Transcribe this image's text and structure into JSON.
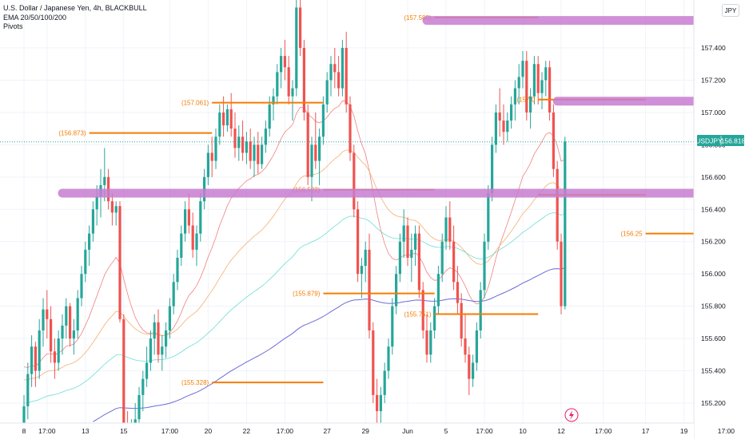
{
  "legend": {
    "symbol_line": "U.S. Dollar / Japanese Yen, 4h, BLACKBULL",
    "indicator_ema": "EMA 20/50/100/200",
    "indicator_pivots": "Pivots"
  },
  "currency_button": "JPY",
  "price_badge": {
    "symbol": "USDJPY",
    "price": "156.818"
  },
  "colors": {
    "bull": "#26a69a",
    "bear": "#ef5350",
    "pivot": "#f57c00",
    "zone": "#c77dd1",
    "ema20": "#ef7373",
    "ema50": "#f5a55f",
    "ema100": "#5ed9d1",
    "ema200": "#5b5bd6"
  },
  "chart_data": {
    "type": "candlestick",
    "symbol": "USDJPY",
    "timeframe": "4h",
    "y_axis": {
      "ticks": [
        155.2,
        155.4,
        155.6,
        155.8,
        156.0,
        156.2,
        156.4,
        156.6,
        156.8,
        157.0,
        157.2,
        157.4
      ],
      "tick_labels": [
        "155.200",
        "155.400",
        "155.600",
        "155.800",
        "156.000",
        "156.200",
        "156.400",
        "156.600",
        "156.800",
        "157.000",
        "157.200",
        "157.400"
      ],
      "range": [
        155.1,
        157.75
      ]
    },
    "x_axis": {
      "tick_labels": [
        "8",
        "17:00",
        "13",
        "15",
        "17:00",
        "20",
        "22",
        "17:00",
        "27",
        "29",
        "Jun",
        "5",
        "17:00",
        "10",
        "12",
        "17:00",
        "17",
        "19",
        "17:00"
      ],
      "tick_bar_index": [
        0,
        6,
        16,
        26,
        38,
        48,
        58,
        68,
        79,
        89,
        100,
        110,
        120,
        130,
        140,
        151,
        162,
        172,
        183
      ]
    },
    "current_price": 156.818,
    "candles": [
      [
        155.0,
        155.25,
        154.85,
        155.18
      ],
      [
        155.18,
        155.45,
        155.1,
        155.38
      ],
      [
        155.38,
        155.62,
        155.3,
        155.55
      ],
      [
        155.55,
        155.58,
        155.3,
        155.4
      ],
      [
        155.4,
        155.72,
        155.35,
        155.65
      ],
      [
        155.65,
        155.85,
        155.55,
        155.78
      ],
      [
        155.78,
        155.9,
        155.6,
        155.72
      ],
      [
        155.72,
        155.8,
        155.45,
        155.52
      ],
      [
        155.52,
        155.6,
        155.35,
        155.45
      ],
      [
        155.45,
        155.65,
        155.4,
        155.6
      ],
      [
        155.6,
        155.75,
        155.5,
        155.68
      ],
      [
        155.68,
        155.85,
        155.6,
        155.8
      ],
      [
        155.8,
        155.82,
        155.55,
        155.6
      ],
      [
        155.6,
        155.72,
        155.5,
        155.65
      ],
      [
        155.65,
        155.9,
        155.6,
        155.85
      ],
      [
        155.85,
        156.05,
        155.8,
        156.0
      ],
      [
        156.0,
        156.2,
        155.95,
        156.15
      ],
      [
        156.15,
        156.3,
        156.05,
        156.25
      ],
      [
        156.25,
        156.45,
        156.2,
        156.4
      ],
      [
        156.4,
        156.55,
        156.3,
        156.48
      ],
      [
        156.48,
        156.65,
        156.35,
        156.55
      ],
      [
        156.55,
        156.78,
        156.45,
        156.6
      ],
      [
        156.6,
        156.65,
        156.4,
        156.45
      ],
      [
        156.45,
        156.5,
        156.3,
        156.38
      ],
      [
        156.38,
        156.45,
        156.3,
        156.42
      ],
      [
        156.42,
        156.45,
        155.7,
        155.72
      ],
      [
        155.72,
        155.75,
        155.0,
        155.05
      ],
      [
        155.05,
        155.15,
        154.9,
        155.0
      ],
      [
        155.0,
        155.1,
        154.85,
        155.05
      ],
      [
        155.05,
        155.2,
        154.95,
        155.1
      ],
      [
        155.1,
        155.3,
        155.05,
        155.25
      ],
      [
        155.25,
        155.4,
        155.15,
        155.35
      ],
      [
        155.35,
        155.55,
        155.3,
        155.45
      ],
      [
        155.45,
        155.65,
        155.4,
        155.6
      ],
      [
        155.6,
        155.75,
        155.5,
        155.7
      ],
      [
        155.7,
        155.78,
        155.45,
        155.5
      ],
      [
        155.5,
        155.62,
        155.4,
        155.55
      ],
      [
        155.55,
        155.7,
        155.48,
        155.65
      ],
      [
        155.65,
        155.85,
        155.6,
        155.8
      ],
      [
        155.8,
        156.0,
        155.75,
        155.95
      ],
      [
        155.95,
        156.15,
        155.9,
        156.1
      ],
      [
        156.1,
        156.3,
        156.05,
        156.25
      ],
      [
        156.25,
        156.45,
        156.2,
        156.4
      ],
      [
        156.4,
        156.5,
        156.25,
        156.3
      ],
      [
        156.3,
        156.38,
        156.1,
        156.15
      ],
      [
        156.15,
        156.3,
        156.05,
        156.25
      ],
      [
        156.25,
        156.5,
        156.2,
        156.45
      ],
      [
        156.45,
        156.65,
        156.4,
        156.6
      ],
      [
        156.6,
        156.8,
        156.55,
        156.75
      ],
      [
        156.75,
        156.85,
        156.6,
        156.7
      ],
      [
        156.7,
        156.9,
        156.65,
        156.85
      ],
      [
        156.85,
        157.05,
        156.8,
        157.0
      ],
      [
        157.0,
        157.1,
        156.85,
        156.92
      ],
      [
        156.92,
        157.05,
        156.88,
        157.02
      ],
      [
        157.02,
        157.12,
        156.85,
        156.9
      ],
      [
        156.9,
        157.0,
        156.72,
        156.78
      ],
      [
        156.78,
        156.92,
        156.7,
        156.85
      ],
      [
        156.85,
        156.95,
        156.7,
        156.75
      ],
      [
        156.75,
        156.88,
        156.68,
        156.82
      ],
      [
        156.82,
        156.9,
        156.65,
        156.7
      ],
      [
        156.7,
        156.85,
        156.6,
        156.8
      ],
      [
        156.8,
        156.88,
        156.62,
        156.68
      ],
      [
        156.68,
        156.85,
        156.65,
        156.8
      ],
      [
        156.8,
        156.95,
        156.75,
        156.9
      ],
      [
        156.9,
        157.1,
        156.85,
        157.05
      ],
      [
        157.05,
        157.15,
        156.95,
        157.1
      ],
      [
        157.1,
        157.3,
        157.05,
        157.25
      ],
      [
        157.25,
        157.4,
        157.15,
        157.35
      ],
      [
        157.35,
        157.45,
        157.2,
        157.28
      ],
      [
        157.28,
        157.35,
        157.05,
        157.1
      ],
      [
        157.1,
        157.2,
        156.95,
        157.15
      ],
      [
        157.15,
        157.7,
        157.1,
        157.65
      ],
      [
        157.65,
        157.72,
        157.35,
        157.4
      ],
      [
        157.4,
        157.45,
        156.95,
        157.0
      ],
      [
        157.0,
        157.05,
        156.55,
        156.6
      ],
      [
        156.6,
        156.85,
        156.45,
        156.8
      ],
      [
        156.8,
        157.0,
        156.65,
        156.7
      ],
      [
        156.7,
        156.9,
        156.55,
        156.85
      ],
      [
        156.85,
        157.1,
        156.8,
        157.05
      ],
      [
        157.05,
        157.25,
        157.0,
        157.2
      ],
      [
        157.2,
        157.35,
        157.1,
        157.3
      ],
      [
        157.3,
        157.4,
        157.15,
        157.25
      ],
      [
        157.25,
        157.35,
        157.1,
        157.15
      ],
      [
        157.15,
        157.45,
        157.1,
        157.4
      ],
      [
        157.4,
        157.5,
        157.0,
        157.05
      ],
      [
        157.05,
        157.1,
        156.7,
        156.75
      ],
      [
        156.75,
        156.8,
        156.35,
        156.4
      ],
      [
        156.4,
        156.45,
        155.95,
        156.0
      ],
      [
        156.0,
        156.1,
        155.85,
        156.05
      ],
      [
        156.05,
        156.2,
        155.95,
        156.15
      ],
      [
        156.15,
        156.25,
        155.6,
        155.65
      ],
      [
        155.65,
        155.7,
        155.2,
        155.25
      ],
      [
        155.25,
        155.35,
        155.05,
        155.15
      ],
      [
        155.15,
        155.3,
        155.05,
        155.25
      ],
      [
        155.25,
        155.45,
        155.2,
        155.4
      ],
      [
        155.4,
        155.6,
        155.35,
        155.55
      ],
      [
        155.55,
        155.85,
        155.5,
        155.8
      ],
      [
        155.8,
        156.05,
        155.75,
        156.0
      ],
      [
        156.0,
        156.25,
        155.95,
        156.2
      ],
      [
        156.2,
        156.4,
        156.1,
        156.3
      ],
      [
        156.3,
        156.35,
        156.05,
        156.1
      ],
      [
        156.1,
        156.25,
        155.95,
        156.15
      ],
      [
        156.15,
        156.3,
        156.05,
        156.25
      ],
      [
        156.25,
        156.3,
        155.85,
        155.9
      ],
      [
        155.9,
        155.95,
        155.6,
        155.65
      ],
      [
        155.65,
        155.75,
        155.45,
        155.5
      ],
      [
        155.5,
        155.7,
        155.45,
        155.65
      ],
      [
        155.65,
        155.85,
        155.6,
        155.8
      ],
      [
        155.8,
        156.05,
        155.75,
        156.0
      ],
      [
        156.0,
        156.25,
        155.95,
        156.2
      ],
      [
        156.2,
        156.42,
        156.15,
        156.35
      ],
      [
        156.35,
        156.45,
        156.15,
        156.2
      ],
      [
        156.2,
        156.3,
        155.9,
        155.95
      ],
      [
        155.95,
        156.05,
        155.75,
        155.82
      ],
      [
        155.82,
        155.88,
        155.55,
        155.6
      ],
      [
        155.6,
        155.75,
        155.45,
        155.5
      ],
      [
        155.5,
        155.55,
        155.25,
        155.35
      ],
      [
        155.35,
        155.5,
        155.3,
        155.45
      ],
      [
        155.45,
        155.7,
        155.4,
        155.65
      ],
      [
        155.65,
        155.95,
        155.6,
        155.9
      ],
      [
        155.9,
        156.25,
        155.85,
        156.2
      ],
      [
        156.2,
        156.55,
        156.15,
        156.5
      ],
      [
        156.5,
        156.85,
        156.45,
        156.8
      ],
      [
        156.8,
        157.05,
        156.75,
        157.0
      ],
      [
        157.0,
        157.15,
        156.85,
        156.95
      ],
      [
        156.95,
        157.05,
        156.8,
        156.88
      ],
      [
        156.88,
        157.0,
        156.82,
        156.95
      ],
      [
        156.95,
        157.1,
        156.9,
        157.05
      ],
      [
        157.05,
        157.2,
        156.95,
        157.15
      ],
      [
        157.15,
        157.3,
        157.05,
        157.22
      ],
      [
        157.22,
        157.38,
        157.15,
        157.32
      ],
      [
        157.32,
        157.38,
        156.95,
        157.0
      ],
      [
        157.0,
        157.15,
        156.9,
        157.1
      ],
      [
        157.1,
        157.35,
        157.05,
        157.3
      ],
      [
        157.3,
        157.35,
        157.05,
        157.12
      ],
      [
        157.12,
        157.25,
        157.02,
        157.2
      ],
      [
        157.2,
        157.32,
        157.1,
        157.28
      ],
      [
        157.28,
        157.32,
        156.95,
        157.0
      ],
      [
        157.0,
        157.05,
        156.6,
        156.65
      ],
      [
        156.65,
        156.7,
        156.15,
        156.2
      ],
      [
        156.2,
        156.25,
        155.75,
        155.8
      ],
      [
        155.8,
        156.85,
        155.78,
        156.82
      ]
    ],
    "pivot_levels": [
      {
        "label": "(157.589)",
        "price": 157.589,
        "x_start": 107,
        "x_end": 134
      },
      {
        "label": "(157.061)",
        "price": 157.061,
        "x_start": 49,
        "x_end": 78
      },
      {
        "label": "(156.873)",
        "price": 156.873,
        "x_start": 17,
        "x_end": 49
      },
      {
        "label": "(156.522)",
        "price": 156.522,
        "x_start": 78,
        "x_end": 107
      },
      {
        "label": "(157.0",
        "price": 157.08,
        "x_start": 134,
        "x_end": 162
      },
      {
        "label": "",
        "price": 156.49,
        "x_start": 134,
        "x_end": 162
      },
      {
        "label": "(156.25",
        "price": 156.25,
        "x_start": 162,
        "x_end": 200
      },
      {
        "label": "(155.879)",
        "price": 155.879,
        "x_start": 78,
        "x_end": 107
      },
      {
        "label": "(155.751)",
        "price": 155.751,
        "x_start": 107,
        "x_end": 134
      },
      {
        "label": "(155.328)",
        "price": 155.328,
        "x_start": 49,
        "x_end": 78
      }
    ],
    "highlight_zones": [
      {
        "name": "",
        "price": 157.57,
        "x_start": 105,
        "x_end": 236
      },
      {
        "name": "",
        "price": 157.07,
        "x_start": 139,
        "x_end": 228
      },
      {
        "name": "",
        "price": 156.5,
        "x_start": 10,
        "x_end": 236
      }
    ],
    "ema_periods": [
      20,
      50,
      100,
      200
    ],
    "grid": true
  }
}
